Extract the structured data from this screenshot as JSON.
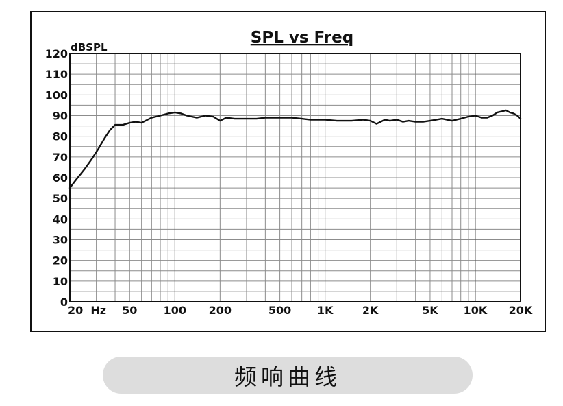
{
  "chart_data": {
    "type": "line",
    "title": "SPL vs Freq",
    "ylabel": "dBSPL",
    "xlabel": "",
    "x_scale": "log",
    "xlim": [
      20,
      20000
    ],
    "ylim": [
      0,
      120
    ],
    "grid": true,
    "y_ticks": [
      0,
      10,
      20,
      30,
      40,
      50,
      60,
      70,
      80,
      90,
      100,
      110,
      120
    ],
    "y_tick_labels": [
      "0",
      "10",
      "20",
      "30",
      "40",
      "50",
      "60",
      "70",
      "80",
      "90",
      "100",
      "110",
      "120"
    ],
    "x_ticks": [
      20,
      50,
      100,
      200,
      500,
      1000,
      2000,
      5000,
      10000,
      20000
    ],
    "x_tick_labels": [
      "20  Hz",
      "50",
      "100",
      "200",
      "500",
      "1K",
      "2K",
      "5K",
      "10K",
      "20K"
    ],
    "line_color": "#111111",
    "series": [
      {
        "x": [
          20,
          22,
          25,
          28,
          31,
          34,
          37,
          40,
          45,
          50,
          55,
          60,
          70,
          80,
          90,
          100,
          110,
          120,
          140,
          160,
          180,
          200,
          220,
          250,
          300,
          350,
          400,
          450,
          500,
          600,
          700,
          800,
          1000,
          1200,
          1500,
          1800,
          2000,
          2200,
          2500,
          2700,
          3000,
          3300,
          3600,
          4000,
          4500,
          5000,
          5500,
          6000,
          7000,
          8000,
          9000,
          10000,
          11000,
          12000,
          13000,
          14000,
          15000,
          16000,
          17000,
          18000,
          19000,
          20000
        ],
        "values": [
          55,
          59,
          64,
          69,
          74,
          79,
          83,
          85.5,
          85.5,
          86.5,
          87,
          86.5,
          89,
          90,
          91,
          91.5,
          91,
          90,
          89,
          90,
          89.5,
          87.5,
          89,
          88.5,
          88.5,
          88.5,
          89,
          89,
          89,
          89,
          88.5,
          88,
          88,
          87.5,
          87.5,
          88,
          87.5,
          86,
          88,
          87.5,
          88,
          87,
          87.5,
          87,
          87,
          87.5,
          88,
          88.5,
          87.5,
          88.5,
          89.5,
          90,
          89,
          89,
          90,
          91.5,
          92,
          92.5,
          91.5,
          91,
          90,
          88.5
        ]
      }
    ]
  },
  "caption": "频响曲线"
}
